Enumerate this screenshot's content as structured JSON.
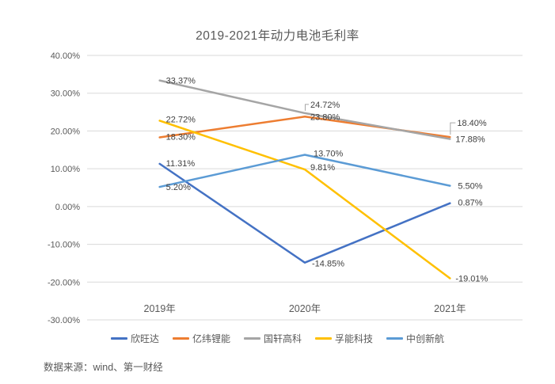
{
  "title": "2019-2021年动力电池毛利率",
  "source": "数据来源：wind、第一财经",
  "colors": {
    "axis_text": "#595959",
    "label_text": "#404040",
    "gridline": "#D9D9D9",
    "leader_line": "#A6A6A6"
  },
  "chart_data": {
    "type": "line",
    "title": "2019-2021年动力电池毛利率",
    "categories": [
      "2019年",
      "2020年",
      "2021年"
    ],
    "series": [
      {
        "id": "xinwangda",
        "name": "欣旺达",
        "color": "#4472C4",
        "values": [
          11.31,
          -14.85,
          0.87
        ]
      },
      {
        "id": "yiweilineng",
        "name": "亿纬锂能",
        "color": "#ED7D31",
        "values": [
          18.3,
          23.8,
          18.4
        ]
      },
      {
        "id": "guoxuangaoke",
        "name": "国轩高科",
        "color": "#A5A5A5",
        "values": [
          33.37,
          24.72,
          17.88
        ]
      },
      {
        "id": "funengkeji",
        "name": "孚能科技",
        "color": "#FFC000",
        "values": [
          22.72,
          9.81,
          -19.01
        ]
      },
      {
        "id": "zhongchuangxinhang",
        "name": "中创新航",
        "color": "#5B9BD5",
        "values": [
          5.2,
          13.7,
          5.5
        ]
      }
    ],
    "ylim": [
      -30,
      40
    ],
    "y_tick_step": 10,
    "y_tick_format": "percent_2dp",
    "y_tick_labels": [
      "40.00%",
      "30.00%",
      "20.00%",
      "10.00%",
      "0.00%",
      "-10.00%",
      "-20.00%",
      "-30.00%"
    ],
    "grid": true,
    "data_labels": true,
    "legend_position": "bottom"
  }
}
